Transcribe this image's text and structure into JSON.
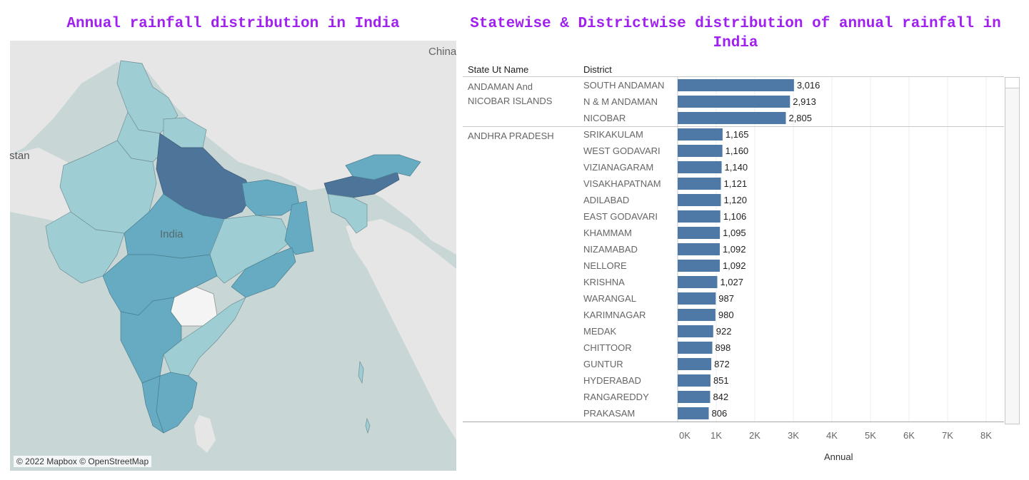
{
  "map": {
    "title": "Annual rainfall distribution in India",
    "attribution": "© 2022 Mapbox © OpenStreetMap",
    "place_labels": [
      "India",
      "Pakistan",
      "China"
    ],
    "colors": {
      "water": "#c8d6d6",
      "land": "#e6e6e6",
      "light": "#9fcdd4",
      "mid": "#66abc2",
      "dark": "#4d7499"
    }
  },
  "chart_title": "Statewise & Districtwise distribution of annual rainfall in India",
  "chart_data": {
    "type": "bar",
    "orientation": "horizontal",
    "columns": [
      "State Ut Name",
      "District"
    ],
    "xlabel": "Annual",
    "xlim": [
      0,
      8000
    ],
    "ticks": [
      "0K",
      "1K",
      "2K",
      "3K",
      "4K",
      "5K",
      "6K",
      "7K",
      "8K"
    ],
    "bar_color": "#4e79a7",
    "groups": [
      {
        "state": "ANDAMAN And NICOBAR ISLANDS",
        "rows": [
          {
            "district": "SOUTH ANDAMAN",
            "value": 3016,
            "label": "3,016"
          },
          {
            "district": "N & M ANDAMAN",
            "value": 2913,
            "label": "2,913"
          },
          {
            "district": "NICOBAR",
            "value": 2805,
            "label": "2,805"
          }
        ]
      },
      {
        "state": "ANDHRA PRADESH",
        "rows": [
          {
            "district": "SRIKAKULAM",
            "value": 1165,
            "label": "1,165"
          },
          {
            "district": "WEST GODAVARI",
            "value": 1160,
            "label": "1,160"
          },
          {
            "district": "VIZIANAGARAM",
            "value": 1140,
            "label": "1,140"
          },
          {
            "district": "VISAKHAPATNAM",
            "value": 1121,
            "label": "1,121"
          },
          {
            "district": "ADILABAD",
            "value": 1120,
            "label": "1,120"
          },
          {
            "district": "EAST GODAVARI",
            "value": 1106,
            "label": "1,106"
          },
          {
            "district": "KHAMMAM",
            "value": 1095,
            "label": "1,095"
          },
          {
            "district": "NIZAMABAD",
            "value": 1092,
            "label": "1,092"
          },
          {
            "district": "NELLORE",
            "value": 1092,
            "label": "1,092"
          },
          {
            "district": "KRISHNA",
            "value": 1027,
            "label": "1,027"
          },
          {
            "district": "WARANGAL",
            "value": 987,
            "label": "987"
          },
          {
            "district": "KARIMNAGAR",
            "value": 980,
            "label": "980"
          },
          {
            "district": "MEDAK",
            "value": 922,
            "label": "922"
          },
          {
            "district": "CHITTOOR",
            "value": 898,
            "label": "898"
          },
          {
            "district": "GUNTUR",
            "value": 872,
            "label": "872"
          },
          {
            "district": "HYDERABAD",
            "value": 851,
            "label": "851"
          },
          {
            "district": "RANGAREDDY",
            "value": 842,
            "label": "842"
          },
          {
            "district": "PRAKASAM",
            "value": 806,
            "label": "806"
          }
        ]
      }
    ]
  }
}
